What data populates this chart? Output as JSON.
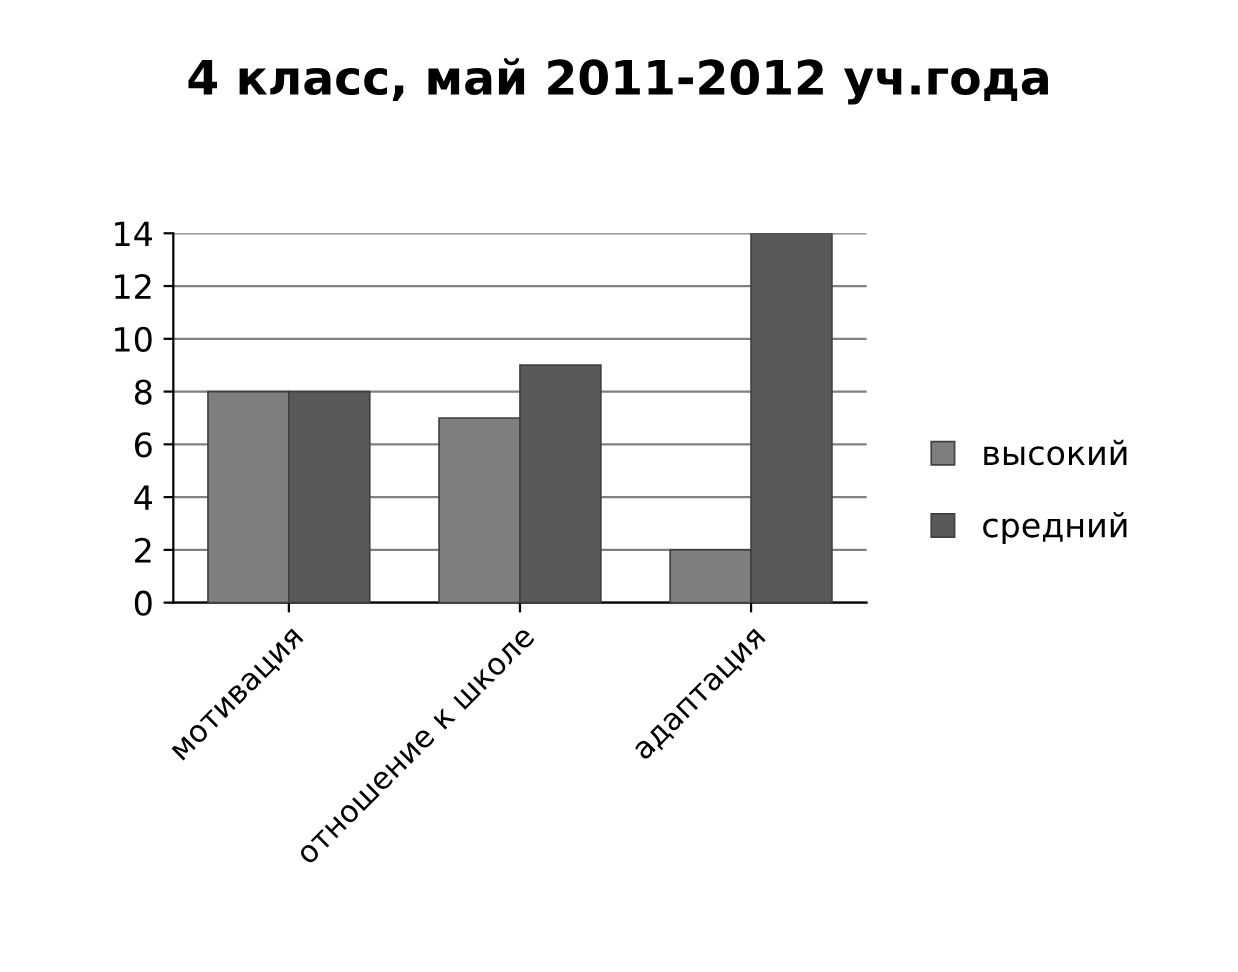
{
  "chart_data": {
    "type": "bar",
    "title": "4 класс, май 2011-2012 уч.года",
    "categories": [
      "мотивация",
      "отношение к школе",
      "адаптация"
    ],
    "series": [
      {
        "name": "высокий",
        "color": "#7f7f7f",
        "values": [
          8,
          7,
          2
        ]
      },
      {
        "name": "средний",
        "color": "#595959",
        "values": [
          8,
          9,
          14
        ]
      }
    ],
    "ylim": [
      0,
      14
    ],
    "yticks": [
      0,
      2,
      4,
      6,
      8,
      10,
      12,
      14
    ],
    "grid": "y",
    "legend": "right"
  }
}
